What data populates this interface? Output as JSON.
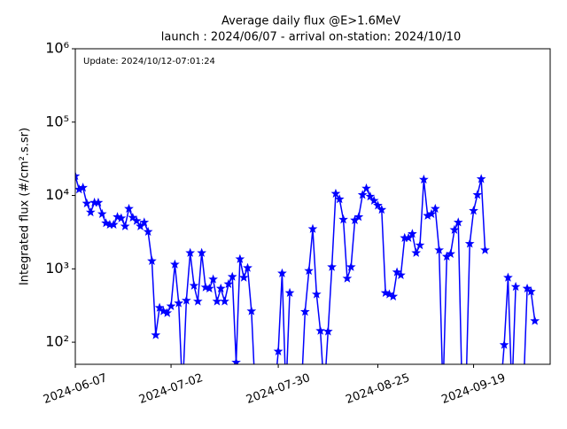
{
  "chart_data": {
    "type": "line",
    "title": "Average daily flux @E>1.6MeV",
    "subtitle": "launch : 2024/06/07 - arrival on-station: 2024/10/10",
    "annotation": "Update: 2024/10/12-07:01:24",
    "ylabel": "Integrated flux (#/cm².s.sr)",
    "log_y": true,
    "xlim": [
      "2024-06-07",
      "2024-10-09"
    ],
    "xticks": [
      "2024-06-07",
      "2024-07-02",
      "2024-07-30",
      "2024-08-25",
      "2024-09-19"
    ],
    "ylim": [
      50,
      1000000
    ],
    "yticks": [
      {
        "value": 100,
        "label": "10²"
      },
      {
        "value": 1000,
        "label": "10³"
      },
      {
        "value": 10000,
        "label": "10⁴"
      },
      {
        "value": 100000,
        "label": "10⁵"
      },
      {
        "value": 1000000,
        "label": "10⁶"
      }
    ],
    "x": [
      "2024-06-07",
      "2024-06-08",
      "2024-06-09",
      "2024-06-10",
      "2024-06-11",
      "2024-06-12",
      "2024-06-13",
      "2024-06-14",
      "2024-06-15",
      "2024-06-16",
      "2024-06-17",
      "2024-06-18",
      "2024-06-19",
      "2024-06-20",
      "2024-06-21",
      "2024-06-22",
      "2024-06-23",
      "2024-06-24",
      "2024-06-25",
      "2024-06-26",
      "2024-06-27",
      "2024-06-28",
      "2024-06-29",
      "2024-06-30",
      "2024-07-01",
      "2024-07-02",
      "2024-07-03",
      "2024-07-04",
      "2024-07-05",
      "2024-07-06",
      "2024-07-07",
      "2024-07-08",
      "2024-07-09",
      "2024-07-10",
      "2024-07-11",
      "2024-07-12",
      "2024-07-13",
      "2024-07-14",
      "2024-07-15",
      "2024-07-16",
      "2024-07-17",
      "2024-07-18",
      "2024-07-19",
      "2024-07-20",
      "2024-07-21",
      "2024-07-22",
      "2024-07-23",
      "2024-07-24",
      "2024-07-25",
      "2024-07-26",
      "2024-07-27",
      "2024-07-28",
      "2024-07-29",
      "2024-07-30",
      "2024-07-31",
      "2024-08-01",
      "2024-08-02",
      "2024-08-03",
      "2024-08-04",
      "2024-08-05",
      "2024-08-06",
      "2024-08-07",
      "2024-08-08",
      "2024-08-09",
      "2024-08-10",
      "2024-08-11",
      "2024-08-12",
      "2024-08-13",
      "2024-08-14",
      "2024-08-15",
      "2024-08-16",
      "2024-08-17",
      "2024-08-18",
      "2024-08-19",
      "2024-08-20",
      "2024-08-21",
      "2024-08-22",
      "2024-08-23",
      "2024-08-24",
      "2024-08-25",
      "2024-08-26",
      "2024-08-27",
      "2024-08-28",
      "2024-08-29",
      "2024-08-30",
      "2024-08-31",
      "2024-09-01",
      "2024-09-02",
      "2024-09-03",
      "2024-09-04",
      "2024-09-05",
      "2024-09-06",
      "2024-09-07",
      "2024-09-08",
      "2024-09-09",
      "2024-09-10",
      "2024-09-11",
      "2024-09-12",
      "2024-09-13",
      "2024-09-14",
      "2024-09-15",
      "2024-09-16",
      "2024-09-17",
      "2024-09-18",
      "2024-09-19",
      "2024-09-20",
      "2024-09-21",
      "2024-09-22",
      "2024-09-23",
      "2024-09-24",
      "2024-09-25",
      "2024-09-26",
      "2024-09-27",
      "2024-09-28",
      "2024-09-29",
      "2024-09-30",
      "2024-10-01",
      "2024-10-02",
      "2024-10-03",
      "2024-10-04",
      "2024-10-05"
    ],
    "series": [
      {
        "color": "#0000ff",
        "values": [
          18400,
          12100,
          12800,
          7800,
          5900,
          8000,
          8000,
          5600,
          4200,
          4000,
          4000,
          5100,
          4900,
          3800,
          6600,
          5000,
          4500,
          3800,
          4300,
          3200,
          1280,
          125,
          295,
          265,
          250,
          310,
          1150,
          340,
          20,
          370,
          1650,
          590,
          360,
          1650,
          560,
          540,
          720,
          360,
          540,
          360,
          620,
          780,
          53,
          1360,
          760,
          1030,
          265,
          20,
          null,
          null,
          null,
          null,
          20,
          75,
          870,
          20,
          470,
          null,
          null,
          20,
          260,
          940,
          3500,
          450,
          143,
          20,
          140,
          1060,
          10600,
          8900,
          4700,
          740,
          1060,
          4600,
          5100,
          10200,
          12500,
          9700,
          8500,
          7300,
          6400,
          470,
          450,
          420,
          900,
          820,
          2640,
          2640,
          3000,
          1650,
          2100,
          16500,
          5300,
          5600,
          6600,
          1800,
          20,
          1470,
          1600,
          3400,
          4300,
          20,
          20,
          2200,
          6200,
          10200,
          16800,
          1800,
          null,
          null,
          null,
          20,
          92,
          760,
          20,
          570,
          null,
          20,
          540,
          490,
          195
        ]
      }
    ]
  }
}
